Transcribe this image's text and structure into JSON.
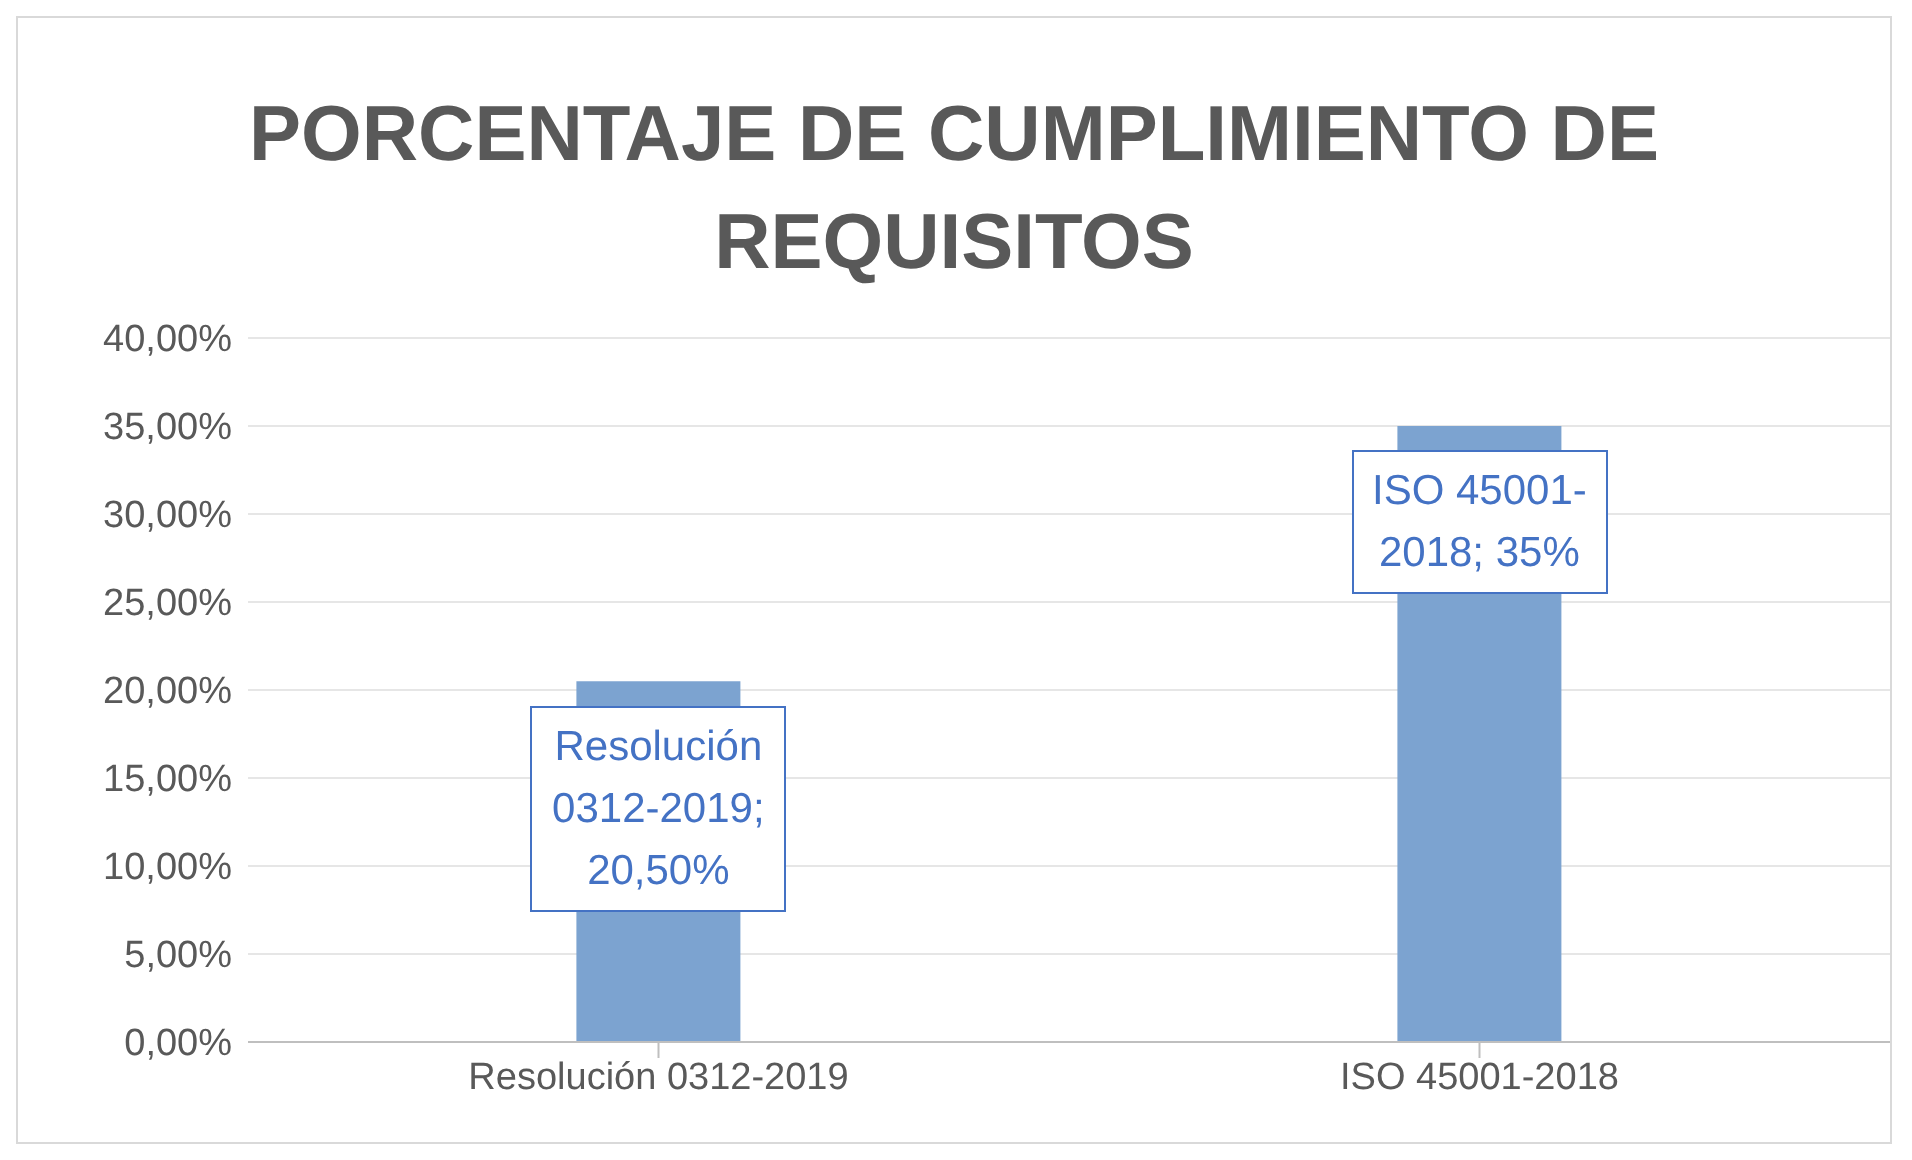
{
  "chart_data": {
    "type": "bar",
    "title": "PORCENTAJE DE CUMPLIMIENTO DE REQUISITOS",
    "categories": [
      "Resolución 0312-2019",
      "ISO 45001-2018"
    ],
    "values": [
      20.5,
      35
    ],
    "value_labels": [
      "Resolución 0312-2019; 20,50%",
      "ISO 45001-2018; 35%"
    ],
    "color": "#7ca3d0",
    "ylim": [
      0,
      40
    ],
    "yticks": [
      {
        "value": 0,
        "label": "0,00%"
      },
      {
        "value": 5,
        "label": "5,00%"
      },
      {
        "value": 10,
        "label": "10,00%"
      },
      {
        "value": 15,
        "label": "15,00%"
      },
      {
        "value": 20,
        "label": "20,00%"
      },
      {
        "value": 25,
        "label": "25,00%"
      },
      {
        "value": 30,
        "label": "30,00%"
      },
      {
        "value": 35,
        "label": "35,00%"
      },
      {
        "value": 40,
        "label": "40,00%"
      }
    ],
    "grid": "y",
    "legend": false
  }
}
